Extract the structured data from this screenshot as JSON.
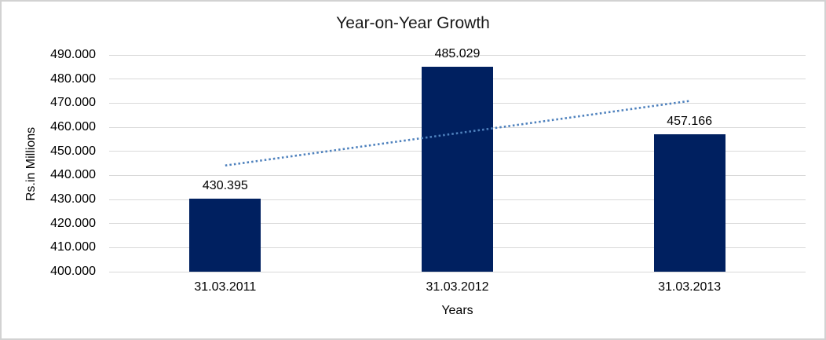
{
  "chart_data": {
    "type": "bar",
    "title": "Year-on-Year Growth",
    "xlabel": "Years",
    "ylabel": "Rs.in Millions",
    "categories": [
      "31.03.2011",
      "31.03.2012",
      "31.03.2013"
    ],
    "values": [
      430.395,
      485.029,
      457.166
    ],
    "data_labels": [
      "430.395",
      "485.029",
      "457.166"
    ],
    "ylim": [
      400,
      490
    ],
    "ytick_step": 10,
    "ytick_labels": [
      "400.000",
      "410.000",
      "420.000",
      "430.000",
      "440.000",
      "450.000",
      "460.000",
      "470.000",
      "480.000",
      "490.000"
    ],
    "grid": true,
    "legend_position": "none",
    "bar_color": "#002060",
    "gridline_color": "#d9d9d9",
    "frame_border_color": "#d2d2d2",
    "trendline": {
      "style": "dotted",
      "color": "#4e81bd",
      "start_value": 444.1,
      "end_value": 470.9
    }
  }
}
